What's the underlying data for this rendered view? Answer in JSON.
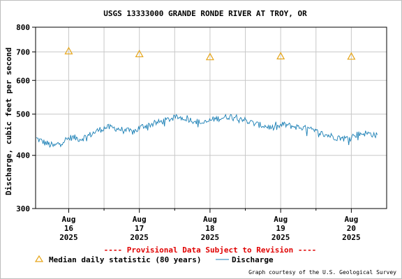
{
  "chart_data": {
    "type": "line",
    "title": "USGS 13333000 GRANDE RONDE RIVER AT TROY, OR",
    "ylabel": "Discharge, cubic feet per second",
    "yscale": "log",
    "ylim": [
      300,
      800
    ],
    "yticks": [
      300,
      400,
      500,
      600,
      700,
      800
    ],
    "xlim": [
      "2025-08-15T12:45",
      "2025-08-20T12:00"
    ],
    "xticks": [
      {
        "at": "2025-08-16T00:00",
        "month": "Aug",
        "day": "16",
        "year": "2025"
      },
      {
        "at": "2025-08-17T00:00",
        "month": "Aug",
        "day": "17",
        "year": "2025"
      },
      {
        "at": "2025-08-18T00:00",
        "month": "Aug",
        "day": "18",
        "year": "2025"
      },
      {
        "at": "2025-08-19T00:00",
        "month": "Aug",
        "day": "19",
        "year": "2025"
      },
      {
        "at": "2025-08-20T00:00",
        "month": "Aug",
        "day": "20",
        "year": "2025"
      }
    ],
    "grid": true,
    "series": [
      {
        "name": "Discharge",
        "color": "#1a7fb5",
        "x": [
          "2025-08-15T13:00",
          "2025-08-15T16:00",
          "2025-08-15T19:00",
          "2025-08-15T22:00",
          "2025-08-16T01:00",
          "2025-08-16T04:00",
          "2025-08-16T07:00",
          "2025-08-16T10:00",
          "2025-08-16T13:00",
          "2025-08-16T16:00",
          "2025-08-16T19:00",
          "2025-08-16T22:00",
          "2025-08-17T01:00",
          "2025-08-17T04:00",
          "2025-08-17T07:00",
          "2025-08-17T10:00",
          "2025-08-17T13:00",
          "2025-08-17T16:00",
          "2025-08-17T19:00",
          "2025-08-17T22:00",
          "2025-08-18T01:00",
          "2025-08-18T04:00",
          "2025-08-18T07:00",
          "2025-08-18T10:00",
          "2025-08-18T13:00",
          "2025-08-18T16:00",
          "2025-08-18T19:00",
          "2025-08-18T22:00",
          "2025-08-19T01:00",
          "2025-08-19T04:00",
          "2025-08-19T07:00",
          "2025-08-19T10:00",
          "2025-08-19T13:00",
          "2025-08-19T16:00",
          "2025-08-19T19:00",
          "2025-08-19T22:00",
          "2025-08-20T01:00",
          "2025-08-20T04:00",
          "2025-08-20T07:00",
          "2025-08-20T09:00"
        ],
        "values": [
          438,
          428,
          420,
          432,
          441,
          437,
          446,
          458,
          466,
          463,
          458,
          454,
          468,
          473,
          479,
          486,
          492,
          488,
          481,
          476,
          486,
          490,
          494,
          491,
          480,
          473,
          468,
          463,
          473,
          468,
          465,
          460,
          452,
          446,
          441,
          438,
          446,
          451,
          449,
          444
        ],
        "noise": 8
      },
      {
        "name": "Median daily statistic (80 years)",
        "color": "#e6a519",
        "marker": "triangle",
        "x": [
          "2025-08-16T00:00",
          "2025-08-17T00:00",
          "2025-08-18T00:00",
          "2025-08-19T00:00",
          "2025-08-20T00:00"
        ],
        "values": [
          703,
          692,
          681,
          684,
          683
        ]
      }
    ]
  },
  "provisional_note": "---- Provisional Data Subject to Revision ----",
  "legend": {
    "median_label": "Median daily statistic (80 years)",
    "discharge_label": "Discharge"
  },
  "credit": "Graph courtesy of the U.S. Geological Survey",
  "colors": {
    "grid": "#c8c8c8",
    "axis": "#000000",
    "provisional": "#e00000"
  }
}
